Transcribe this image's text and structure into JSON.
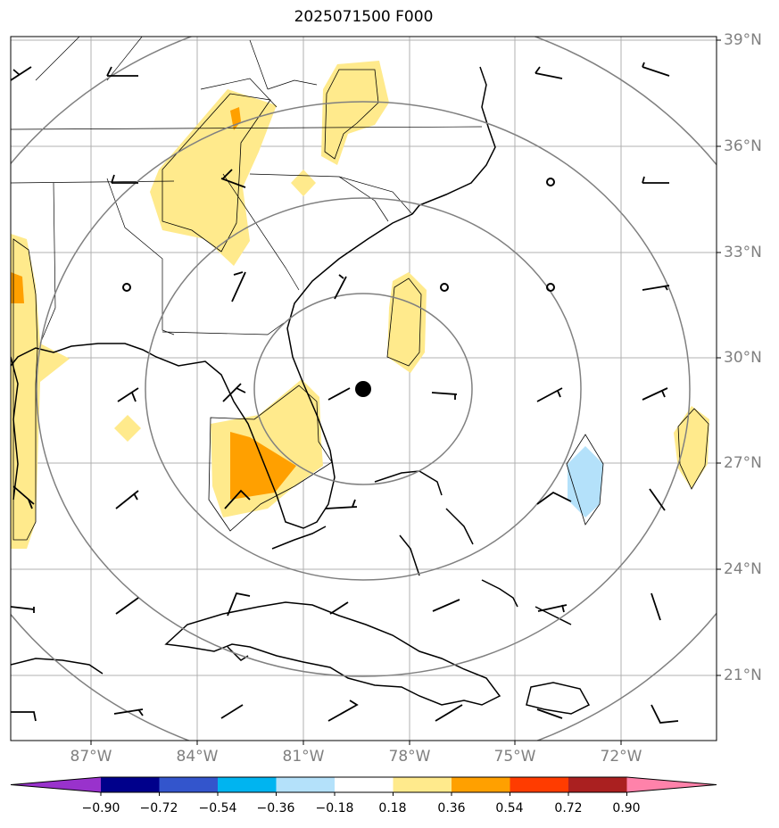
{
  "title": "2025071500 F000",
  "lat_labels": [
    "39°N",
    "36°N",
    "33°N",
    "30°N",
    "27°N",
    "24°N",
    "21°N"
  ],
  "lon_labels": [
    "87°W",
    "84°W",
    "81°W",
    "78°W",
    "75°W",
    "72°W"
  ],
  "colorbar": {
    "tick_labels": [
      "−0.90",
      "−0.72",
      "−0.54",
      "−0.36",
      "−0.18",
      "0.18",
      "0.36",
      "0.54",
      "0.72",
      "0.90"
    ],
    "colors": [
      "#9932cc",
      "#00008b",
      "#3355cc",
      "#00b4f0",
      "#b4e1fa",
      "#ffffff",
      "#ffea8c",
      "#ffa000",
      "#ff3c00",
      "#aa2020",
      "#ff82aa"
    ]
  },
  "map": {
    "projection": "lat-lon",
    "lon_range": [
      -89.3,
      -69.3
    ],
    "lat_range": [
      19.0,
      39.1
    ],
    "storm_center": {
      "lat": 29.1,
      "lon": -79.0
    },
    "range_rings": 4,
    "wind_barbs": true,
    "colors": {
      "coast": "#000000",
      "ring": "#808080",
      "grid": "#b0b0b0"
    }
  }
}
